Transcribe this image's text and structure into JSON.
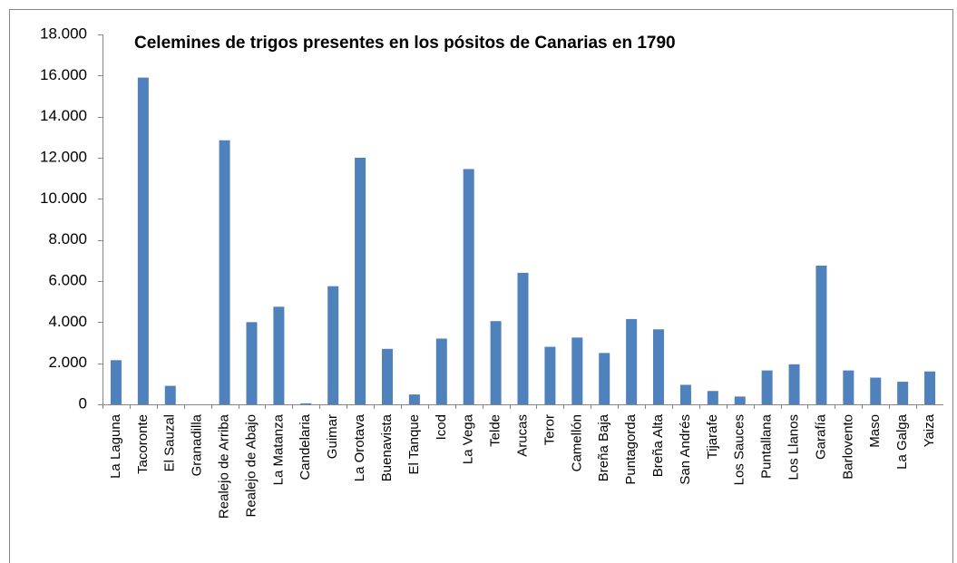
{
  "chart_data": {
    "type": "bar",
    "title": "Celemines de trigos presentes en los pósitos de Canarias en 1790",
    "categories": [
      "La Laguna",
      "Tacoronte",
      "El Sauzal",
      "Granadilla",
      "Realejo de Arriba",
      "Realejo de Abajo",
      "La Matanza",
      "Candelaria",
      "Guimar",
      "La Orotava",
      "Buenavista",
      "El Tanque",
      "Icod",
      "La Vega",
      "Telde",
      "Arucas",
      "Teror",
      "Camellón",
      "Breña Baja",
      "Puntagorda",
      "Breña Alta",
      "San Andrés",
      "Tijarafe",
      "Los Sauces",
      "Puntallana",
      "Los Llanos",
      "Garafía",
      "Barlovento",
      "Maso",
      "La Galga",
      "Yaiza"
    ],
    "values": [
      2150,
      15900,
      900,
      0,
      12850,
      4000,
      4750,
      50,
      5750,
      12000,
      2700,
      480,
      3200,
      11450,
      4050,
      6400,
      2800,
      3250,
      2500,
      4150,
      3650,
      950,
      650,
      380,
      1650,
      1950,
      6750,
      1650,
      1300,
      1100,
      1600
    ],
    "color": "#4f81bd",
    "ylim": [
      0,
      18000
    ],
    "yticks": [
      0,
      {
        "value": 2000,
        "label": "2.000"
      },
      {
        "value": 4000,
        "label": "4.000"
      },
      {
        "value": 6000,
        "label": "6.000"
      },
      {
        "value": 8000,
        "label": "8.000"
      },
      {
        "value": 10000,
        "label": "10.000"
      },
      {
        "value": 12000,
        "label": "12.000"
      },
      {
        "value": 14000,
        "label": "14.000"
      },
      {
        "value": 16000,
        "label": "16.000"
      },
      {
        "value": 18000,
        "label": "18.000"
      }
    ]
  }
}
